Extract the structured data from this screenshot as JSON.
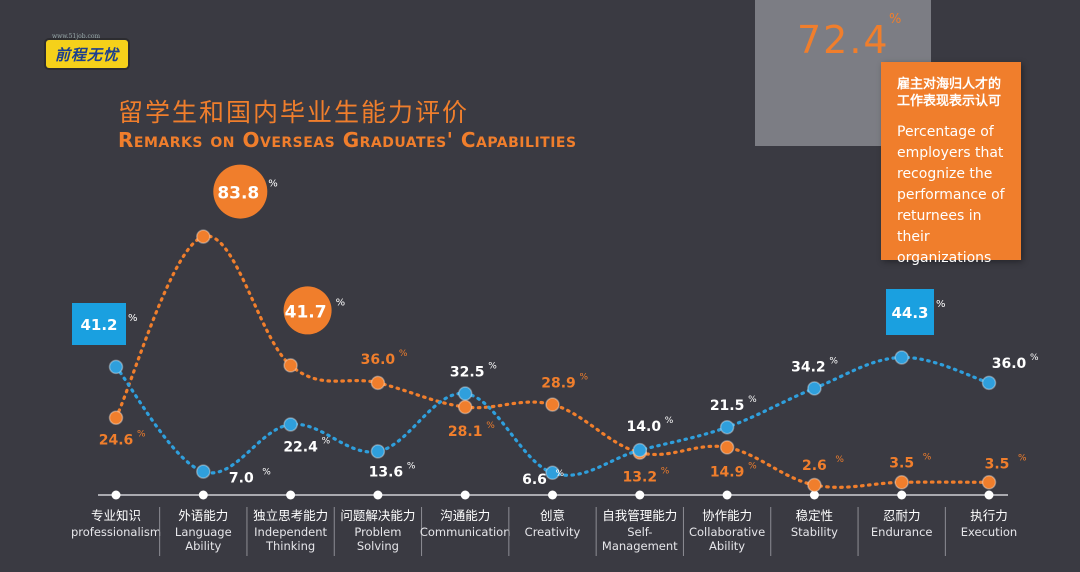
{
  "logo": {
    "text": "前程无忧",
    "site": "www.51job.com"
  },
  "callout": {
    "value": "72.4",
    "unit": "%",
    "text_cn": "雇主对海归人才的工作表现表示认可",
    "text_en": "Percentage of employers that recognize the performance of returnees in their organizations"
  },
  "colors": {
    "background": "#3a3a42",
    "overseas": "#f07e2c",
    "domestic": "#2f9fdc",
    "axis": "#ffffff",
    "label_text": "#ffffff"
  },
  "chart_data": {
    "type": "line",
    "title": "留学生和国内毕业生能力评价",
    "subtitle": "Remarks on Overseas Graduates' Capabilities",
    "categories": [
      {
        "cn": "专业知识",
        "en": [
          "professionalism"
        ]
      },
      {
        "cn": "外语能力",
        "en": [
          "Language",
          "Ability"
        ]
      },
      {
        "cn": "独立思考能力",
        "en": [
          "Independent",
          "Thinking"
        ]
      },
      {
        "cn": "问题解决能力",
        "en": [
          "Problem",
          "Solving"
        ]
      },
      {
        "cn": "沟通能力",
        "en": [
          "Communication"
        ]
      },
      {
        "cn": "创意",
        "en": [
          "Creativity"
        ]
      },
      {
        "cn": "自我管理能力",
        "en": [
          "Self-",
          "Management"
        ]
      },
      {
        "cn": "协作能力",
        "en": [
          "Collaborative",
          "Ability"
        ]
      },
      {
        "cn": "稳定性",
        "en": [
          "Stability"
        ]
      },
      {
        "cn": "忍耐力",
        "en": [
          "Endurance"
        ]
      },
      {
        "cn": "执行力",
        "en": [
          "Execution"
        ]
      }
    ],
    "series": [
      {
        "key": "overseas",
        "values": [
          24.6,
          83.8,
          41.7,
          36.0,
          28.1,
          28.9,
          13.2,
          14.9,
          2.6,
          3.5,
          3.5
        ]
      },
      {
        "key": "domestic",
        "values": [
          41.2,
          7.0,
          22.4,
          13.6,
          32.5,
          6.6,
          14.0,
          21.5,
          34.2,
          44.3,
          36.0
        ]
      }
    ],
    "value_labels": {
      "overseas": [
        "24.6",
        "83.8",
        "41.7",
        "36.0",
        "28.1",
        "28.9",
        "13.2",
        "14.9",
        "2.6",
        "3.5",
        "3.5"
      ],
      "domestic": [
        "41.2",
        "7.0",
        "22.4",
        "13.6",
        "32.5",
        "6.6",
        "14.0",
        "21.5",
        "34.2",
        "44.3",
        "36.0"
      ]
    },
    "unit": "%",
    "highlight": {
      "overseas": [
        1,
        2
      ],
      "domestic": [
        0,
        9
      ]
    },
    "ylim": [
      0,
      90
    ],
    "grid": false,
    "legend": "none"
  }
}
